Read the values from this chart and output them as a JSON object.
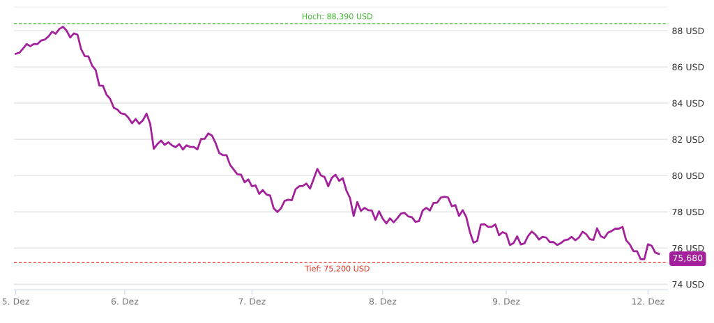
{
  "chart_data": {
    "type": "line",
    "categories": [
      "5. Dez",
      null,
      null,
      null,
      null,
      null,
      null,
      null,
      null,
      null,
      null,
      null,
      null,
      null,
      null,
      null,
      null,
      null,
      null,
      null,
      null,
      null,
      null,
      null,
      null,
      null,
      null,
      null,
      null,
      null,
      "6. Dez",
      null,
      null,
      null,
      null,
      null,
      null,
      null,
      null,
      null,
      null,
      null,
      null,
      null,
      null,
      null,
      null,
      null,
      null,
      null,
      null,
      null,
      null,
      null,
      null,
      null,
      null,
      null,
      null,
      null,
      null,
      null,
      null,
      null,
      null,
      "7. Dez",
      null,
      null,
      null,
      null,
      null,
      null,
      null,
      null,
      null,
      null,
      null,
      null,
      null,
      null,
      null,
      null,
      null,
      null,
      null,
      null,
      null,
      null,
      null,
      null,
      null,
      null,
      null,
      null,
      null,
      null,
      null,
      null,
      null,
      null,
      null,
      "8. Dez",
      null,
      null,
      null,
      null,
      null,
      null,
      null,
      null,
      null,
      null,
      null,
      null,
      null,
      null,
      null,
      null,
      null,
      null,
      null,
      null,
      null,
      null,
      null,
      null,
      null,
      null,
      null,
      null,
      null,
      null,
      null,
      null,
      null,
      "9. Dez",
      null,
      null,
      null,
      null,
      null,
      null,
      null,
      null,
      null,
      null,
      null,
      null,
      null,
      null,
      null,
      null,
      null,
      null,
      null,
      null,
      null,
      null,
      null,
      null,
      null,
      null,
      null,
      null,
      null,
      null,
      null,
      null,
      null,
      null,
      null,
      null,
      null,
      null,
      "12. Dez",
      null,
      null,
      null
    ],
    "series": [
      {
        "color": "#a3229b",
        "values": [
          86.72,
          86.78,
          87.01,
          87.26,
          87.14,
          87.27,
          87.26,
          87.46,
          87.51,
          87.68,
          87.94,
          87.83,
          88.09,
          88.22,
          88.0,
          87.62,
          87.85,
          87.78,
          86.98,
          86.59,
          86.58,
          86.08,
          85.83,
          84.97,
          84.96,
          84.46,
          84.23,
          83.74,
          83.64,
          83.43,
          83.4,
          83.2,
          82.89,
          83.12,
          82.86,
          83.05,
          83.42,
          82.86,
          81.48,
          81.74,
          81.93,
          81.7,
          81.84,
          81.67,
          81.57,
          81.74,
          81.44,
          81.67,
          81.58,
          81.58,
          81.45,
          82.02,
          82.03,
          82.33,
          82.21,
          81.8,
          81.25,
          81.13,
          81.13,
          80.59,
          80.33,
          80.07,
          80.05,
          79.63,
          79.79,
          79.41,
          79.46,
          78.99,
          79.2,
          78.96,
          78.9,
          78.19,
          77.99,
          78.19,
          78.6,
          78.67,
          78.64,
          79.24,
          79.41,
          79.43,
          79.56,
          79.28,
          79.82,
          80.37,
          80.01,
          79.92,
          79.41,
          79.88,
          80.05,
          79.71,
          79.86,
          79.18,
          78.76,
          77.77,
          78.54,
          78.05,
          78.22,
          78.09,
          78.07,
          77.56,
          78.03,
          77.62,
          77.36,
          77.64,
          77.42,
          77.64,
          77.9,
          77.94,
          77.75,
          77.71,
          77.45,
          77.49,
          78.07,
          78.22,
          78.07,
          78.5,
          78.51,
          78.79,
          78.83,
          78.79,
          78.31,
          78.37,
          77.77,
          78.09,
          77.71,
          76.88,
          76.3,
          76.39,
          77.3,
          77.32,
          77.17,
          77.17,
          77.3,
          76.71,
          76.88,
          76.79,
          76.17,
          76.27,
          76.65,
          76.2,
          76.26,
          76.66,
          76.91,
          76.75,
          76.47,
          76.62,
          76.58,
          76.33,
          76.33,
          76.17,
          76.27,
          76.43,
          76.47,
          76.62,
          76.43,
          76.58,
          76.9,
          76.77,
          76.49,
          76.45,
          77.09,
          76.65,
          76.56,
          76.85,
          76.94,
          77.07,
          77.07,
          77.17,
          76.43,
          76.2,
          75.83,
          75.83,
          75.38,
          75.38,
          76.21,
          76.13,
          75.75,
          75.68
        ]
      }
    ],
    "ylim": [
      73.7,
      89.3
    ],
    "yticks": [
      {
        "value": 74,
        "label": "74 USD"
      },
      {
        "value": 76,
        "label": "76 USD"
      },
      {
        "value": 78,
        "label": "78 USD"
      },
      {
        "value": 80,
        "label": "80 USD"
      },
      {
        "value": 82,
        "label": "82 USD"
      },
      {
        "value": 84,
        "label": "84 USD"
      },
      {
        "value": 86,
        "label": "86 USD"
      },
      {
        "value": 88,
        "label": "88 USD"
      }
    ],
    "grid": "y",
    "line_style": "solid",
    "ref_lines": [
      {
        "axis": "y",
        "value": 88.39,
        "label": "Hoch: 88,390 USD",
        "color": "#44bb33",
        "line_style": "dashed"
      },
      {
        "axis": "y",
        "value": 75.2,
        "label": "Tief: 75,200 USD",
        "color": "#dd3322",
        "line_style": "dashed"
      }
    ],
    "annotations": [
      "75,680"
    ]
  }
}
